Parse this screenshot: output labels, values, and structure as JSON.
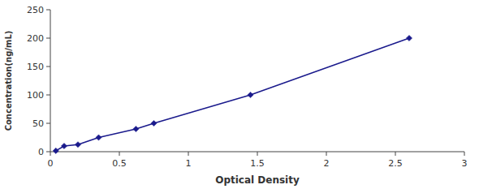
{
  "chart_data": {
    "type": "line",
    "x": [
      0.04,
      0.1,
      0.2,
      0.35,
      0.62,
      0.75,
      1.45,
      2.6
    ],
    "values": [
      1.6,
      10,
      12.5,
      25,
      40,
      50,
      100,
      200
    ],
    "color": "#1a1a8c",
    "marker": "diamond",
    "line_style": "solid",
    "xlabel": "Optical Density",
    "ylabel": "Concentration(ng/mL)",
    "xlim": [
      0,
      3
    ],
    "ylim": [
      0,
      250
    ],
    "xticks": [
      0,
      0.5,
      1,
      1.5,
      2,
      2.5,
      3
    ],
    "yticks": [
      0,
      50,
      100,
      150,
      200,
      250
    ],
    "grid": false
  }
}
